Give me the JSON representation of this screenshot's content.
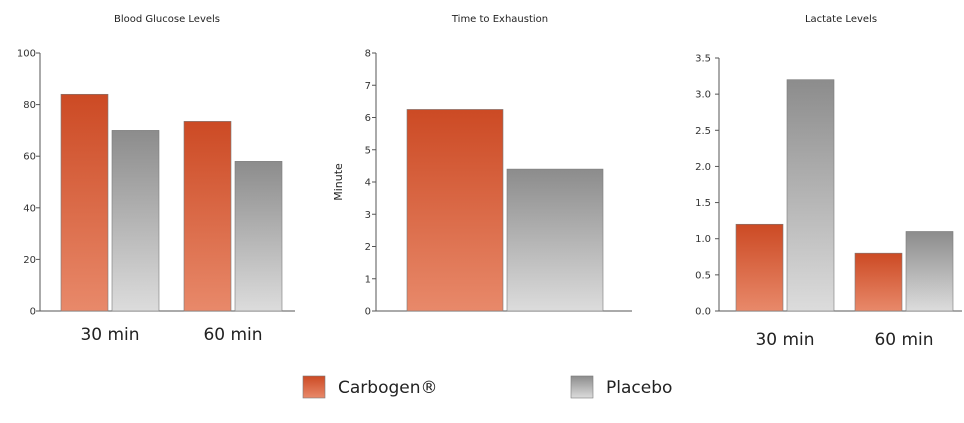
{
  "colors": {
    "carbogen_top": "#cc4a24",
    "carbogen_bottom": "#e8896a",
    "placebo_top": "#8c8c8c",
    "placebo_bottom": "#dcdcdc",
    "axis": "#555555"
  },
  "legend": [
    {
      "name": "Carbogen®",
      "color_key": "carbogen"
    },
    {
      "name": "Placebo",
      "color_key": "placebo"
    }
  ],
  "chart_data": [
    {
      "type": "bar",
      "title": "Blood Glucose Levels",
      "xlabel": "",
      "ylabel": "",
      "ylim": [
        0,
        100
      ],
      "yticks": [
        "0",
        "20",
        "40",
        "60",
        "80",
        "100"
      ],
      "categories": [
        "30 min",
        "60 min"
      ],
      "series": [
        {
          "name": "Carbogen®",
          "values": [
            84,
            73.5
          ]
        },
        {
          "name": "Placebo",
          "values": [
            70,
            58
          ]
        }
      ]
    },
    {
      "type": "bar",
      "title": "Time to Exhaustion",
      "xlabel": "",
      "ylabel": "Minute",
      "ylim": [
        0,
        8
      ],
      "yticks": [
        "0",
        "1",
        "2",
        "3",
        "4",
        "5",
        "6",
        "7",
        "8"
      ],
      "categories": [
        ""
      ],
      "series": [
        {
          "name": "Carbogen®",
          "values": [
            6.25
          ]
        },
        {
          "name": "Placebo",
          "values": [
            4.4
          ]
        }
      ]
    },
    {
      "type": "bar",
      "title": "Lactate Levels",
      "xlabel": "",
      "ylabel": "",
      "ylim": [
        0,
        3.5
      ],
      "yticks": [
        "0.0",
        "0.5",
        "1.0",
        "1.5",
        "2.0",
        "2.5",
        "3.0",
        "3.5"
      ],
      "categories": [
        "30 min",
        "60 min"
      ],
      "series": [
        {
          "name": "Carbogen®",
          "values": [
            1.2,
            0.8
          ]
        },
        {
          "name": "Placebo",
          "values": [
            3.2,
            1.1
          ]
        }
      ]
    }
  ]
}
